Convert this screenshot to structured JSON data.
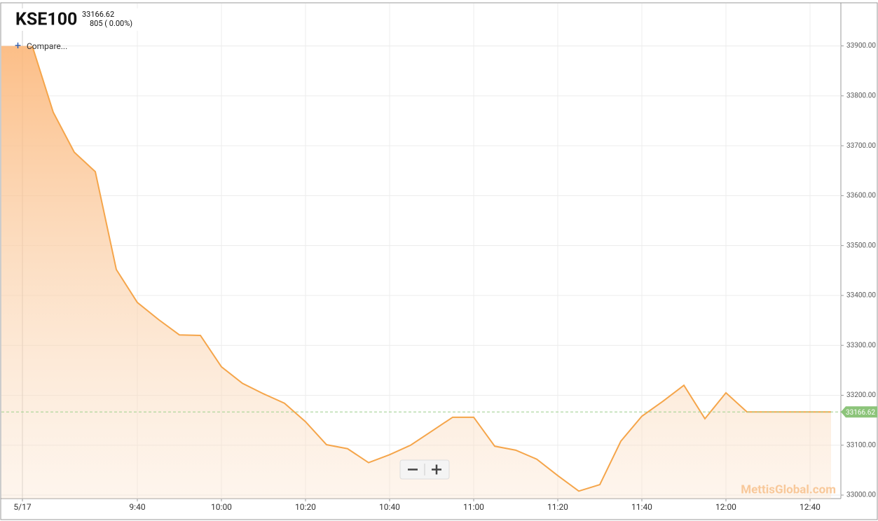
{
  "chart_data": {
    "type": "area",
    "title": "KSE100",
    "last_price": 33166.62,
    "change": "805 ( 0.00%)",
    "compare_button": "Compare...",
    "watermark": "MettisGlobal.com",
    "color": "#f5a54a",
    "grid": true,
    "categories": [
      "9:15",
      "9:20",
      "9:25",
      "9:30",
      "9:35",
      "9:40",
      "9:45",
      "9:50",
      "9:55",
      "10:00",
      "10:05",
      "10:10",
      "10:15",
      "10:20",
      "10:25",
      "10:30",
      "10:35",
      "10:40",
      "10:45",
      "10:50",
      "10:55",
      "11:00",
      "11:05",
      "11:10",
      "11:15",
      "11:20",
      "11:25",
      "11:30",
      "11:35",
      "11:40",
      "11:45",
      "11:50",
      "11:55",
      "12:00",
      "12:05",
      "12:30",
      "12:35",
      "12:40",
      "12:45"
    ],
    "values": [
      33900,
      33767,
      33687,
      33648,
      33452,
      33386,
      33352,
      33321,
      33320,
      33257,
      33224,
      33203,
      33184,
      33147,
      33101,
      33093,
      33065,
      33081,
      33100,
      33128,
      33156,
      33156,
      33098,
      33090,
      33072,
      33039,
      33008,
      33021,
      33108,
      33158,
      33188,
      33220,
      33153,
      33205,
      33166.62,
      33166.62,
      33166.62,
      33166.62,
      33166.62
    ],
    "xticks": [
      {
        "value": "9:15",
        "label": "5/17"
      },
      "9:40",
      "10:00",
      "10:20",
      "10:40",
      "11:00",
      "11:20",
      "11:40",
      "12:00",
      "12:40"
    ],
    "ylim": [
      32993,
      33985
    ],
    "yticks": [
      {
        "value": 33000,
        "label": "33000.00"
      },
      {
        "value": 33100,
        "label": "33100.00"
      },
      {
        "value": 33200,
        "label": "33200.00"
      },
      {
        "value": 33300,
        "label": "33300.00"
      },
      {
        "value": 33400,
        "label": "33400.00"
      },
      {
        "value": 33500,
        "label": "33500.00"
      },
      {
        "value": 33600,
        "label": "33600.00"
      },
      {
        "value": 33700,
        "label": "33700.00"
      },
      {
        "value": 33800,
        "label": "33800.00"
      },
      {
        "value": 33900,
        "label": "33900.00"
      }
    ]
  }
}
